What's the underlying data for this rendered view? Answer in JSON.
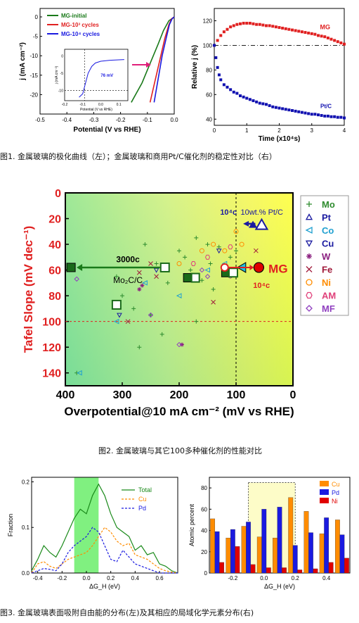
{
  "captions": {
    "fig1": "图1. 金属玻璃的极化曲线（左）；金属玻璃和商用Pt/C催化剂的稳定性对比（右）",
    "fig2": "图2. 金属玻璃与其它100多种催化剂的性能对比",
    "fig3": "图3. 金属玻璃表面吸附自由能的分布(左)及其相应的局域化学元素分布(右)"
  },
  "colors": {
    "green": "#1a7a1a",
    "red": "#e02020",
    "blue": "#1a1ae0",
    "navy": "#1010b0",
    "orange": "#ff8c00",
    "darkred": "#cc0000"
  },
  "chart_data": [
    {
      "id": "polarization",
      "type": "line",
      "xlabel": "Potential (V vs RHE)",
      "ylabel": "j (mA cm⁻²)",
      "xlim": [
        -0.5,
        0.0
      ],
      "xticks": [
        "-0.5",
        "-0.4",
        "-0.3",
        "-0.2",
        "-0.1",
        "0.0"
      ],
      "yticks": [
        "0",
        "-5",
        "-10",
        "-15",
        "-20"
      ],
      "series": [
        {
          "name": "MG-initial",
          "color": "#1a7a1a",
          "x": [
            -0.16,
            -0.12,
            -0.09,
            -0.06,
            -0.04,
            -0.02,
            0.0
          ],
          "y": [
            -22,
            -17,
            -12,
            -7,
            -3.5,
            -1,
            0
          ]
        },
        {
          "name": "MG-10³ cycles",
          "color": "#e02020",
          "x": [
            -0.09,
            -0.07,
            -0.05,
            -0.035,
            -0.02,
            -0.01,
            0.0
          ],
          "y": [
            -22,
            -16,
            -10,
            -5.5,
            -2,
            -0.5,
            0
          ]
        },
        {
          "name": "MG-10⁴ cycles",
          "color": "#1a1ae0",
          "x": [
            -0.075,
            -0.06,
            -0.045,
            -0.03,
            -0.018,
            -0.008,
            0.0
          ],
          "y": [
            -22,
            -16,
            -10,
            -5.5,
            -2,
            -0.5,
            0
          ]
        }
      ],
      "legend": [
        "MG-initial",
        "MG-10³ cycles",
        "MG-10⁴ cycles"
      ],
      "inset": {
        "xlabel": "Potential (V vs RHE)",
        "ylabel": "j (mA cm⁻²)",
        "annotation": "76 mV",
        "xticks": [
          "-0.2",
          "-0.1",
          "0.0",
          "0.1"
        ],
        "yticks": [
          "0",
          "-5",
          "-10"
        ]
      }
    },
    {
      "id": "stability",
      "type": "scatter",
      "xlabel": "Time (x10⁴s)",
      "ylabel": "Relative j (%)",
      "xlim": [
        0,
        4
      ],
      "ylim": [
        35,
        130
      ],
      "xticks": [
        "0",
        "1",
        "2",
        "3",
        "4"
      ],
      "yticks": [
        "40",
        "60",
        "80",
        "100",
        "120"
      ],
      "series": [
        {
          "name": "MG",
          "color": "#e02020",
          "x": [
            0,
            0.1,
            0.2,
            0.3,
            0.4,
            0.5,
            0.6,
            0.7,
            0.8,
            0.9,
            1.0,
            1.1,
            1.2,
            1.3,
            1.4,
            1.5,
            1.6,
            1.7,
            1.8,
            1.9,
            2.0,
            2.1,
            2.2,
            2.3,
            2.4,
            2.5,
            2.6,
            2.7,
            2.8,
            2.9,
            3.0,
            3.1,
            3.2,
            3.3,
            3.4,
            3.5,
            3.6,
            3.7,
            3.8,
            3.9,
            4.0
          ],
          "y": [
            100,
            104,
            108,
            111,
            113,
            115,
            116,
            117,
            117.5,
            118,
            118,
            118,
            117.5,
            117,
            117,
            116.5,
            116,
            116,
            115.5,
            115,
            114.5,
            114,
            113.5,
            113,
            112.5,
            112,
            111.5,
            111,
            110.5,
            110,
            109.5,
            109,
            108,
            107.5,
            107,
            106,
            105,
            104,
            103,
            102,
            101
          ]
        },
        {
          "name": "Pt/C",
          "color": "#1010b0",
          "x": [
            0,
            0.05,
            0.1,
            0.15,
            0.2,
            0.3,
            0.4,
            0.5,
            0.6,
            0.7,
            0.8,
            0.9,
            1.0,
            1.1,
            1.2,
            1.3,
            1.4,
            1.5,
            1.6,
            1.7,
            1.8,
            1.9,
            2.0,
            2.1,
            2.2,
            2.3,
            2.4,
            2.5,
            2.6,
            2.7,
            2.8,
            2.9,
            3.0,
            3.1,
            3.2,
            3.3,
            3.4,
            3.5,
            3.6,
            3.7,
            3.8,
            3.9,
            4.0
          ],
          "y": [
            100,
            90,
            82,
            76,
            72,
            68,
            66,
            64,
            62,
            61,
            59,
            58,
            57,
            56,
            55,
            54,
            53,
            52.5,
            52,
            51,
            50,
            49.5,
            49,
            48.5,
            48,
            47.5,
            47,
            46.5,
            46,
            45.5,
            45,
            44.5,
            44,
            44,
            43.5,
            43,
            42.5,
            42.5,
            42,
            42,
            41.5,
            41.5,
            41
          ]
        }
      ],
      "reference_line": 100,
      "labels": [
        "MG",
        "Pt/C"
      ]
    },
    {
      "id": "tafel_comparison",
      "type": "scatter",
      "xlabel": "Overpotential@10 mA cm⁻² (mV vs RHE)",
      "ylabel": "Tafel Slope (mV dec⁻¹)",
      "xlim": [
        400,
        0
      ],
      "ylim": [
        0,
        150
      ],
      "xticks": [
        "400",
        "300",
        "200",
        "100",
        "0"
      ],
      "yticks": [
        "0",
        "20",
        "40",
        "60",
        "80",
        "100",
        "120",
        "140"
      ],
      "legend": [
        "Mo",
        "Pt",
        "Co",
        "Cu",
        "W",
        "Fe",
        "Ni",
        "AM",
        "MF"
      ],
      "legend_colors": [
        "#2e8b2e",
        "#1a1aa0",
        "#20a0d0",
        "#1a1aa0",
        "#8b2080",
        "#a01a3a",
        "#ff8c00",
        "#e0407a",
        "#9040c0"
      ],
      "annotations": [
        "10⁴c",
        "10wt.% Pt/C",
        "3000c",
        "Mo₂C/C",
        "MG",
        "10⁴c"
      ],
      "highlight": {
        "MG_x": 60,
        "MG_y": 58,
        "MG_initial_x": 120,
        "MG_initial_y": 58,
        "PtC_x": 55,
        "PtC_y": 25,
        "PtC_aged_x": 95,
        "PtC_aged_y": 25,
        "Mo2C_x": 225,
        "Mo2C_y": 58,
        "Mo2C_aged_x": 390,
        "Mo2C_aged_y": 58
      },
      "guide_lines": {
        "x": 100,
        "y": 100
      },
      "points": [
        {
          "s": "Mo",
          "x": 180,
          "y": 60
        },
        {
          "s": "Mo",
          "x": 150,
          "y": 40
        },
        {
          "s": "Mo",
          "x": 130,
          "y": 42
        },
        {
          "s": "Mo",
          "x": 240,
          "y": 55
        },
        {
          "s": "Mo",
          "x": 200,
          "y": 45
        },
        {
          "s": "Mo",
          "x": 170,
          "y": 35
        },
        {
          "s": "Mo",
          "x": 260,
          "y": 40
        },
        {
          "s": "Mo",
          "x": 110,
          "y": 50
        },
        {
          "s": "Mo",
          "x": 145,
          "y": 55
        },
        {
          "s": "Mo",
          "x": 190,
          "y": 50
        },
        {
          "s": "Mo",
          "x": 220,
          "y": 70
        },
        {
          "s": "Mo",
          "x": 160,
          "y": 68
        },
        {
          "s": "Mo",
          "x": 300,
          "y": 80
        },
        {
          "s": "Mo",
          "x": 250,
          "y": 95
        },
        {
          "s": "Mo",
          "x": 270,
          "y": 120
        },
        {
          "s": "Mo",
          "x": 230,
          "y": 110
        },
        {
          "s": "Mo",
          "x": 380,
          "y": 140
        },
        {
          "s": "Mo",
          "x": 310,
          "y": 65
        },
        {
          "s": "Mo",
          "x": 140,
          "y": 75
        },
        {
          "s": "Mo",
          "x": 100,
          "y": 45
        },
        {
          "s": "Mo",
          "x": 280,
          "y": 90
        },
        {
          "s": "Mo",
          "x": 170,
          "y": 100
        },
        {
          "s": "Co",
          "x": 310,
          "y": 100
        },
        {
          "s": "Co",
          "x": 260,
          "y": 70
        },
        {
          "s": "Co",
          "x": 150,
          "y": 60
        },
        {
          "s": "Co",
          "x": 120,
          "y": 55
        },
        {
          "s": "Co",
          "x": 375,
          "y": 140
        },
        {
          "s": "Co",
          "x": 200,
          "y": 80
        },
        {
          "s": "Cu",
          "x": 305,
          "y": 95
        },
        {
          "s": "Cu",
          "x": 240,
          "y": 60
        },
        {
          "s": "Cu",
          "x": 130,
          "y": 45
        },
        {
          "s": "W",
          "x": 270,
          "y": 75
        },
        {
          "s": "W",
          "x": 265,
          "y": 72
        },
        {
          "s": "W",
          "x": 195,
          "y": 118
        },
        {
          "s": "W",
          "x": 110,
          "y": 65
        },
        {
          "s": "Fe",
          "x": 250,
          "y": 55
        },
        {
          "s": "Fe",
          "x": 240,
          "y": 65
        },
        {
          "s": "Fe",
          "x": 290,
          "y": 100
        },
        {
          "s": "Fe",
          "x": 140,
          "y": 85
        },
        {
          "s": "Fe",
          "x": 65,
          "y": 45
        },
        {
          "s": "Fe",
          "x": 270,
          "y": 62
        },
        {
          "s": "Ni",
          "x": 160,
          "y": 45
        },
        {
          "s": "Ni",
          "x": 140,
          "y": 40
        },
        {
          "s": "Ni",
          "x": 120,
          "y": 45
        },
        {
          "s": "Ni",
          "x": 90,
          "y": 40
        },
        {
          "s": "Ni",
          "x": 200,
          "y": 55
        },
        {
          "s": "Ni",
          "x": 100,
          "y": 30
        },
        {
          "s": "AM",
          "x": 150,
          "y": 50
        },
        {
          "s": "AM",
          "x": 110,
          "y": 42
        },
        {
          "s": "AM",
          "x": 175,
          "y": 55
        },
        {
          "s": "MF",
          "x": 380,
          "y": 67
        },
        {
          "s": "MF",
          "x": 250,
          "y": 95
        },
        {
          "s": "MF",
          "x": 200,
          "y": 118
        },
        {
          "s": "MF",
          "x": 160,
          "y": 60
        },
        {
          "s": "MF",
          "x": 150,
          "y": 65
        }
      ]
    },
    {
      "id": "adsorption_distribution",
      "type": "line",
      "xlabel": "ΔG_H (eV)",
      "ylabel": "Fraction",
      "xlim": [
        -0.45,
        0.75
      ],
      "ylim": [
        0,
        0.21
      ],
      "xticks": [
        "-0.4",
        "-0.2",
        "0.0",
        "0.2",
        "0.4",
        "0.6"
      ],
      "yticks": [
        "0.0",
        "0.1",
        "0.2"
      ],
      "highlight_band": [
        -0.1,
        0.1
      ],
      "series": [
        {
          "name": "Total",
          "color": "#1a8a1a",
          "x": [
            -0.45,
            -0.4,
            -0.35,
            -0.3,
            -0.25,
            -0.2,
            -0.15,
            -0.1,
            -0.05,
            0,
            0.05,
            0.1,
            0.15,
            0.2,
            0.25,
            0.3,
            0.35,
            0.4,
            0.45,
            0.5,
            0.55,
            0.6,
            0.65,
            0.7,
            0.75
          ],
          "y": [
            0.005,
            0.03,
            0.06,
            0.045,
            0.035,
            0.06,
            0.09,
            0.12,
            0.14,
            0.13,
            0.17,
            0.195,
            0.17,
            0.13,
            0.1,
            0.09,
            0.08,
            0.05,
            0.06,
            0.04,
            0.045,
            0.02,
            0.015,
            0.005,
            0.0
          ]
        },
        {
          "name": "Cu",
          "color": "#ff8c00",
          "x": [
            -0.45,
            -0.4,
            -0.35,
            -0.3,
            -0.25,
            -0.2,
            -0.15,
            -0.1,
            -0.05,
            0,
            0.05,
            0.1,
            0.15,
            0.2,
            0.25,
            0.3,
            0.35,
            0.4,
            0.45,
            0.5,
            0.55,
            0.6,
            0.65,
            0.7,
            0.75
          ],
          "y": [
            0.0,
            0.02,
            0.025,
            0.015,
            0.01,
            0.02,
            0.03,
            0.035,
            0.04,
            0.045,
            0.06,
            0.08,
            0.1,
            0.09,
            0.07,
            0.06,
            0.065,
            0.04,
            0.035,
            0.03,
            0.02,
            0.01,
            0.005,
            0.002,
            0.0
          ]
        },
        {
          "name": "Pd",
          "color": "#1a1ae0",
          "x": [
            -0.45,
            -0.4,
            -0.35,
            -0.3,
            -0.25,
            -0.2,
            -0.15,
            -0.1,
            -0.05,
            0,
            0.05,
            0.1,
            0.15,
            0.2,
            0.25,
            0.3,
            0.35,
            0.4,
            0.45,
            0.5,
            0.55,
            0.6,
            0.65,
            0.7,
            0.75
          ],
          "y": [
            0.0,
            0.005,
            0.01,
            0.008,
            0.005,
            0.02,
            0.045,
            0.06,
            0.07,
            0.08,
            0.1,
            0.09,
            0.06,
            0.03,
            0.025,
            0.05,
            0.035,
            0.02,
            0.015,
            0.01,
            0.005,
            0.0,
            0.0,
            0.0,
            0.0
          ]
        }
      ],
      "legend": [
        "Total",
        "Cu",
        "Pd"
      ]
    },
    {
      "id": "local_composition",
      "type": "bar",
      "xlabel": "ΔG_H (eV)",
      "ylabel": "Atomic percent",
      "ylim": [
        0,
        90
      ],
      "xticks": [
        "-0.2",
        "0.0",
        "0.2",
        "0.4"
      ],
      "yticks": [
        "0",
        "20",
        "40",
        "60",
        "80"
      ],
      "categories": [
        "-0.3",
        "-0.2",
        "-0.1",
        "0.0",
        "0.1",
        "0.2",
        "0.3",
        "0.4",
        "0.5"
      ],
      "highlight_band": [
        -0.1,
        0.2
      ],
      "series": [
        {
          "name": "Cu",
          "color": "#ff8c00",
          "values": [
            51,
            33,
            44,
            34,
            33,
            71,
            58,
            37,
            50
          ]
        },
        {
          "name": "Pd",
          "color": "#1a1ae0",
          "values": [
            39,
            41,
            48,
            60,
            62,
            26,
            38,
            52,
            36
          ]
        },
        {
          "name": "Ni",
          "color": "#e00000",
          "values": [
            10,
            25,
            8,
            5,
            5,
            3,
            4,
            10,
            14
          ]
        }
      ],
      "legend": [
        "Cu",
        "Pd",
        "Ni"
      ]
    }
  ]
}
